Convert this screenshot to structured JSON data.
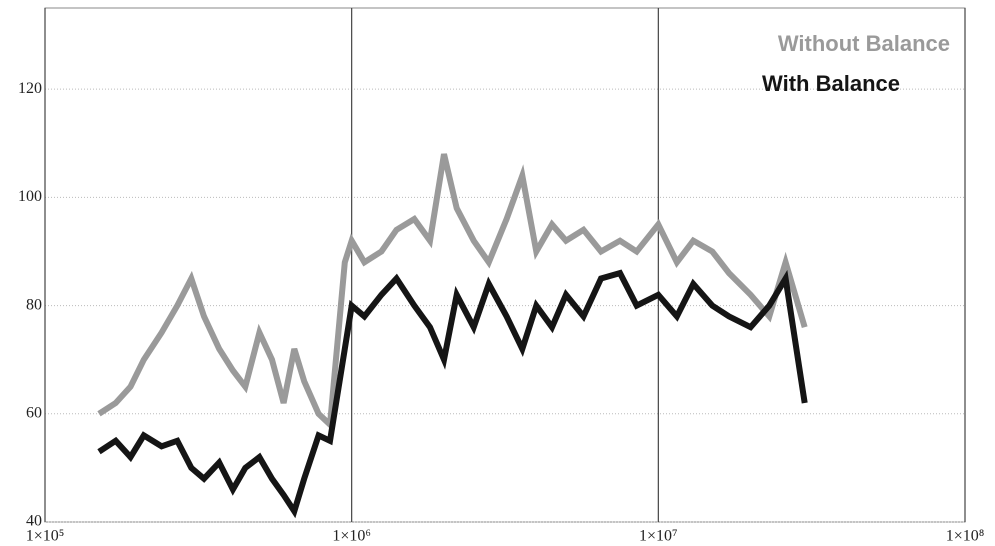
{
  "chart_data": {
    "type": "line",
    "x": [
      150000,
      170000,
      190000,
      210000,
      240000,
      270000,
      300000,
      330000,
      370000,
      410000,
      450000,
      500000,
      550000,
      600000,
      650000,
      700000,
      780000,
      850000,
      950000,
      1000000,
      1100000,
      1250000,
      1400000,
      1600000,
      1800000,
      2000000,
      2200000,
      2500000,
      2800000,
      3200000,
      3600000,
      4000000,
      4500000,
      5000000,
      5700000,
      6500000,
      7500000,
      8500000,
      10000000,
      11500000,
      13000000,
      15000000,
      17000000,
      20000000,
      23000000,
      26000000,
      30000000
    ],
    "series": [
      {
        "name": "Without Balance",
        "color": "#9a9a9a",
        "values": [
          60,
          62,
          65,
          70,
          75,
          80,
          85,
          78,
          72,
          68,
          65,
          75,
          70,
          62,
          72,
          66,
          60,
          58,
          88,
          92,
          88,
          90,
          94,
          96,
          92,
          108,
          98,
          92,
          88,
          96,
          104,
          90,
          95,
          92,
          94,
          90,
          92,
          90,
          95,
          88,
          92,
          90,
          86,
          82,
          78,
          88,
          76
        ]
      },
      {
        "name": "With Balance",
        "color": "#151515",
        "values": [
          53,
          55,
          52,
          56,
          54,
          55,
          50,
          48,
          51,
          46,
          50,
          52,
          48,
          45,
          42,
          48,
          56,
          55,
          72,
          80,
          78,
          82,
          85,
          80,
          76,
          70,
          82,
          76,
          84,
          78,
          72,
          80,
          76,
          82,
          78,
          85,
          86,
          80,
          82,
          78,
          84,
          80,
          78,
          76,
          80,
          85,
          62
        ]
      }
    ],
    "xlim": [
      100000,
      100000000
    ],
    "xticks": [
      {
        "value": 100000,
        "label": "1×10⁵"
      },
      {
        "value": 1000000,
        "label": "1×10⁶"
      },
      {
        "value": 10000000,
        "label": "1×10⁷"
      },
      {
        "value": 100000000,
        "label": "1×10⁸"
      }
    ],
    "ylim": [
      40,
      135
    ],
    "yticks": [
      40,
      60,
      80,
      100,
      120
    ],
    "log_x": true,
    "grid": true,
    "legend": "upper right"
  }
}
